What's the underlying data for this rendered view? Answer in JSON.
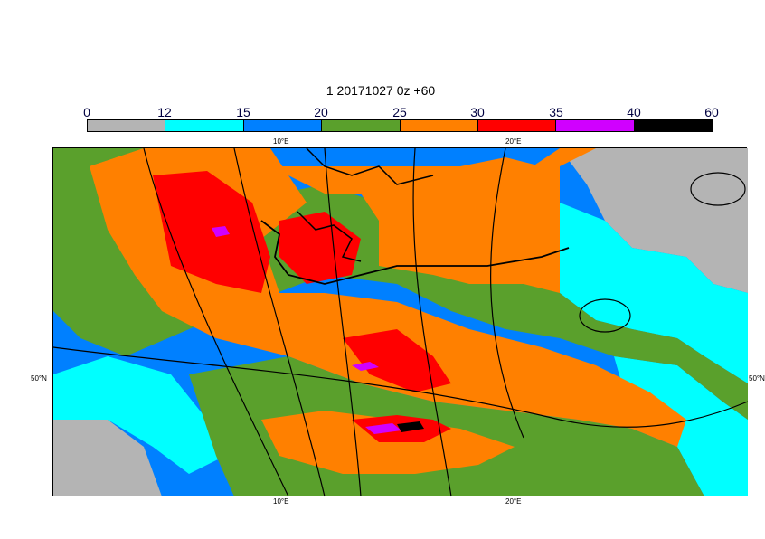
{
  "title": "1 20171027 0z +60",
  "colorbar": {
    "labels": [
      "0",
      "12",
      "15",
      "20",
      "25",
      "30",
      "35",
      "40",
      "60"
    ],
    "colors": [
      "#b4b4b4",
      "#00ffff",
      "#0080ff",
      "#5aa02c",
      "#ff8000",
      "#ff0000",
      "#d000ff",
      "#000000"
    ]
  },
  "axis": {
    "top_lon_1": "10°E",
    "top_lon_2": "20°E",
    "bottom_lon_1": "10°E",
    "bottom_lon_2": "20°E",
    "left_lat": "50°N",
    "right_lat": "50°N"
  }
}
